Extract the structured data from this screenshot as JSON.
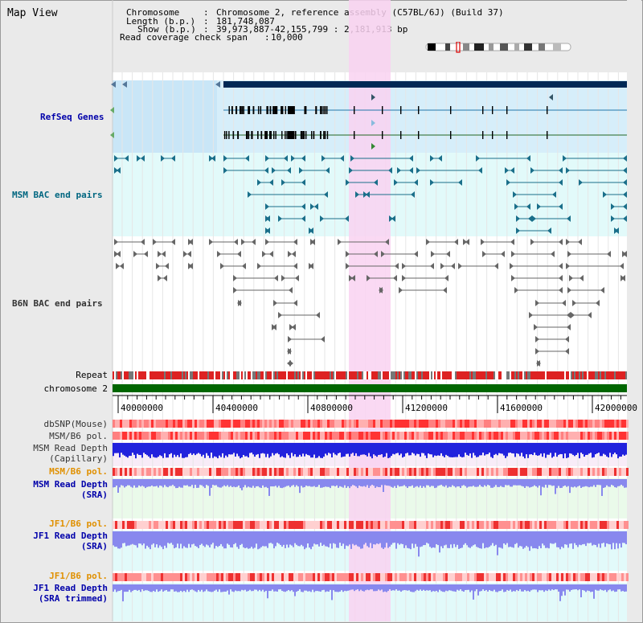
{
  "page": {
    "title": "Map View"
  },
  "header": {
    "chromosome_label": "Chromosome",
    "chromosome_value": "Chromosome 2, reference assembly (C57BL/6J) (Build 37)",
    "length_label": "Length (b.p.)",
    "length_value": "181,748,087",
    "show_label": "Show (b.p.)",
    "show_value": "39,973,887-42,155,799 : 2,181,913 bp",
    "coverage_label": "Read coverage check span",
    "coverage_value": "10,000"
  },
  "tracks": {
    "refseq": "RefSeq Genes",
    "msm_bac": "MSM BAC end pairs",
    "b6n_bac": "B6N BAC end pairs",
    "repeat": "Repeat",
    "chromosome": "chromosome 2",
    "dbsnp": "dbSNP(Mouse)",
    "msm_b6_pol_1": "MSM/B6 pol.",
    "msm_read_depth_cap_1": "MSM Read Depth",
    "msm_read_depth_cap_2": "(Capillary)",
    "msm_b6_pol_2": "MSM/B6 pol.",
    "msm_read_depth_sra_1": "MSM Read Depth",
    "msm_read_depth_sra_2": "(SRA)",
    "jf1_b6_pol_1": "JF1/B6 pol.",
    "jf1_read_depth_sra_1": "JF1 Read Depth",
    "jf1_read_depth_sra_2": "(SRA)",
    "jf1_b6_pol_2": "JF1/B6 pol.",
    "jf1_read_depth_trim_1": "JF1 Read Depth",
    "jf1_read_depth_trim_2": "(SRA trimmed)"
  },
  "axis": {
    "ticks": [
      "40000000",
      "40400000",
      "40800000",
      "41200000",
      "41600000",
      "42000000"
    ]
  },
  "colors": {
    "refseq_label": "#0000aa",
    "msm_label": "#006680",
    "b6n_label": "#333333",
    "orange_label": "#e09000",
    "blue_label": "#0000aa",
    "highlight": "#f9d2f1",
    "refseq_bg": "#d6eefa",
    "msm_bg": "#e2fafa",
    "depth_bg_1": "#f8ecf8",
    "depth_bg_2": "#eafaea",
    "depth_bg_3": "#e2fafa",
    "chromosome_bar": "#006600",
    "top_bar": "#002855"
  }
}
